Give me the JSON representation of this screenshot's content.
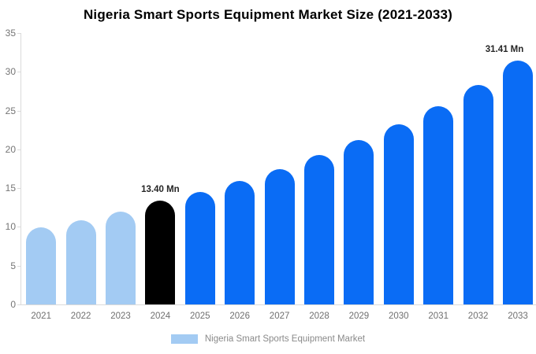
{
  "title": "Nigeria Smart Sports Equipment Market Size (2021-2033)",
  "legend": {
    "label": "Nigeria Smart Sports Equipment Market",
    "swatch_color": "#a3cbf3"
  },
  "colors": {
    "historical": "#a3cbf3",
    "base_year": "#000000",
    "forecast": "#0a6cf5",
    "axis": "#dadada",
    "y_tick_label": "#757575",
    "x_tick_label": "#6f6f6f",
    "data_label": "#262626",
    "background": "#ffffff"
  },
  "chart_data": {
    "type": "bar",
    "title": "Nigeria Smart Sports Equipment Market Size (2021-2033)",
    "unit": "Mn",
    "categories": [
      "2021",
      "2022",
      "2023",
      "2024",
      "2025",
      "2026",
      "2027",
      "2028",
      "2029",
      "2030",
      "2031",
      "2032",
      "2033"
    ],
    "values": [
      9.9,
      10.9,
      12.0,
      13.4,
      14.5,
      15.9,
      17.5,
      19.3,
      21.2,
      23.2,
      25.6,
      28.3,
      31.41
    ],
    "bar_roles": [
      "historical",
      "historical",
      "historical",
      "base_year",
      "forecast",
      "forecast",
      "forecast",
      "forecast",
      "forecast",
      "forecast",
      "forecast",
      "forecast",
      "forecast"
    ],
    "annotations": [
      {
        "category": "2024",
        "label": "13.40 Mn"
      },
      {
        "category": "2033",
        "label": "31.41 Mn"
      }
    ],
    "xlabel": "",
    "ylabel": "",
    "ylim": [
      0,
      35
    ],
    "yticks": [
      0,
      5,
      10,
      15,
      20,
      25,
      30,
      35
    ],
    "grid": false,
    "legend_position": "bottom",
    "legend_entries": [
      "Nigeria Smart Sports Equipment Market"
    ]
  }
}
